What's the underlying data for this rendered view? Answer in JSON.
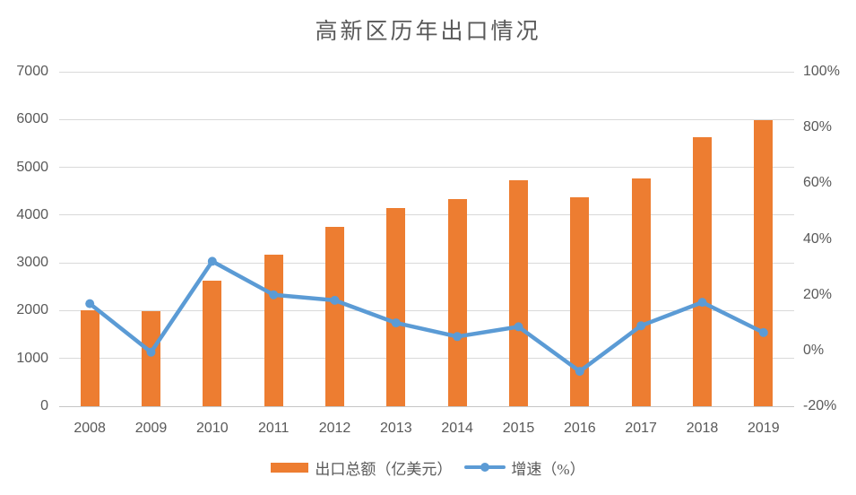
{
  "title": "高新区历年出口情况",
  "colors": {
    "bar": "#ED7D31",
    "line": "#5B9BD5",
    "grid": "#D9D9D9",
    "axis_line": "#C6C6C6",
    "text": "#595959"
  },
  "chart_data": {
    "type": "combo-bar-line",
    "title": "高新区历年出口情况",
    "categories": [
      "2008",
      "2009",
      "2010",
      "2011",
      "2012",
      "2013",
      "2014",
      "2015",
      "2016",
      "2017",
      "2018",
      "2019"
    ],
    "series": [
      {
        "name": "出口总额（亿美元）",
        "type": "bar",
        "axis": "left",
        "color": "#ED7D31",
        "values": [
          2000,
          1990,
          2620,
          3180,
          3760,
          4140,
          4330,
          4720,
          4370,
          4760,
          5630,
          5990
        ]
      },
      {
        "name": "增速（%）",
        "type": "line",
        "axis": "right",
        "color": "#5B9BD5",
        "values": [
          16.8,
          -0.6,
          32,
          20,
          18,
          9.9,
          5,
          8.5,
          -7.5,
          8.9,
          17.3,
          6.4
        ]
      }
    ],
    "left_axis": {
      "min": 0,
      "max": 7000,
      "step": 1000,
      "tick_labels": [
        "0",
        "1000",
        "2000",
        "3000",
        "4000",
        "5000",
        "6000",
        "7000"
      ]
    },
    "right_axis": {
      "min": -20,
      "max": 100,
      "step": 20,
      "tick_labels": [
        "-20%",
        "0%",
        "20%",
        "40%",
        "60%",
        "80%",
        "100%"
      ]
    },
    "grid": true,
    "legend_position": "bottom"
  }
}
